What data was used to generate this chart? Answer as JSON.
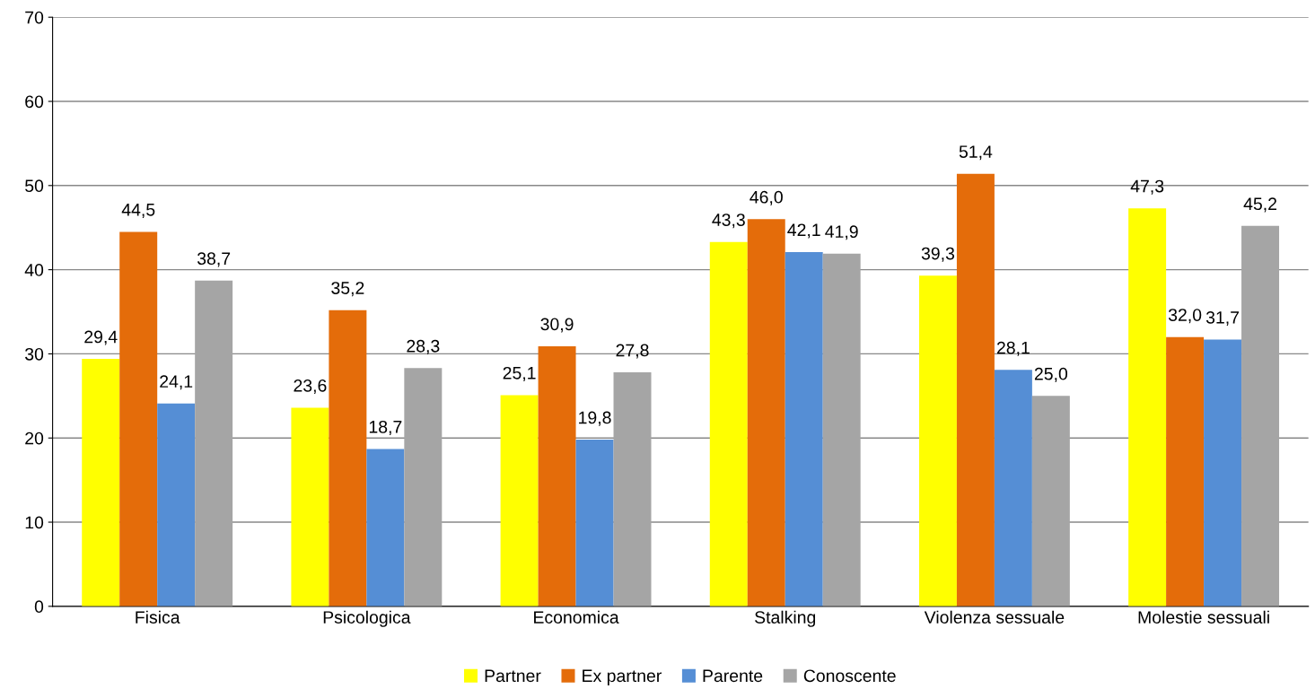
{
  "chart_data": {
    "type": "bar",
    "categories": [
      "Fisica",
      "Psicologica",
      "Economica",
      "Stalking",
      "Violenza sessuale",
      "Molestie sessuali"
    ],
    "series": [
      {
        "name": "Partner",
        "color": "#ffff00",
        "values": [
          29.4,
          23.6,
          25.1,
          43.3,
          39.3,
          47.3
        ],
        "value_labels": [
          "29,4",
          "23,6",
          "25,1",
          "43,3",
          "39,3",
          "47,3"
        ]
      },
      {
        "name": "Ex partner",
        "color": "#e46c0a",
        "values": [
          44.5,
          35.2,
          30.9,
          46.0,
          51.4,
          32.0
        ],
        "value_labels": [
          "44,5",
          "35,2",
          "30,9",
          "46,0",
          "51,4",
          "32,0"
        ]
      },
      {
        "name": "Parente",
        "color": "#558ed5",
        "values": [
          24.1,
          18.7,
          19.8,
          42.1,
          28.1,
          31.7
        ],
        "value_labels": [
          "24,1",
          "18,7",
          "19,8",
          "42,1",
          "28,1",
          "31,7"
        ]
      },
      {
        "name": "Conoscente",
        "color": "#a5a5a5",
        "values": [
          38.7,
          28.3,
          27.8,
          41.9,
          25.0,
          45.2
        ],
        "value_labels": [
          "38,7",
          "28,3",
          "27,8",
          "41,9",
          "25,0",
          "45,2"
        ]
      }
    ],
    "ylim": [
      0,
      70
    ],
    "yticks": [
      0,
      10,
      20,
      30,
      40,
      50,
      60,
      70
    ],
    "grid": "y",
    "legend": "bottom"
  }
}
